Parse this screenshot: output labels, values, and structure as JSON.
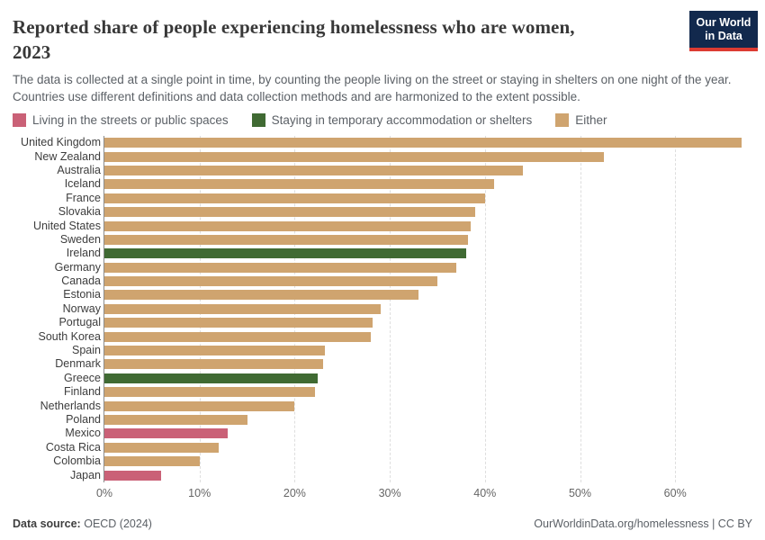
{
  "header": {
    "title_line1": "Reported share of people experiencing homelessness who are women,",
    "title_line2": "2023",
    "subtitle": "The data is collected at a single point in time, by counting the people living on the street or staying in shelters on one night of the year. Countries use different definitions and data collection methods and are harmonized to the extent possible.",
    "logo_line1": "Our World",
    "logo_line2": "in Data"
  },
  "colors": {
    "streets": "#ca6177",
    "shelters": "#406a33",
    "either": "#cfa46f",
    "logo_bg": "#12294d",
    "logo_stripe": "#dc3b32",
    "axis_line": "#8c8c8c",
    "gridline": "#dedede"
  },
  "legend": {
    "items": [
      {
        "key": "streets",
        "label": "Living in the streets or public spaces"
      },
      {
        "key": "shelters",
        "label": "Staying in temporary accommodation or shelters"
      },
      {
        "key": "either",
        "label": "Either"
      }
    ]
  },
  "chart_data": {
    "type": "bar",
    "orientation": "horizontal",
    "title": "Reported share of people experiencing homelessness who are women, 2023",
    "unit": "%",
    "xlim": [
      0,
      69
    ],
    "x_ticks": [
      "0%",
      "10%",
      "20%",
      "30%",
      "40%",
      "50%",
      "60%"
    ],
    "x_tick_values": [
      0,
      10,
      20,
      30,
      40,
      50,
      60
    ],
    "grid": "vertical dashed gridlines at each 10%",
    "legend_position": "top",
    "bars": [
      {
        "country": "United Kingdom",
        "value": 67,
        "series": "either"
      },
      {
        "country": "New Zealand",
        "value": 52.5,
        "series": "either"
      },
      {
        "country": "Australia",
        "value": 44,
        "series": "either"
      },
      {
        "country": "Iceland",
        "value": 41,
        "series": "either"
      },
      {
        "country": "France",
        "value": 40,
        "series": "either"
      },
      {
        "country": "Slovakia",
        "value": 39,
        "series": "either"
      },
      {
        "country": "United States",
        "value": 38.5,
        "series": "either"
      },
      {
        "country": "Sweden",
        "value": 38.2,
        "series": "either"
      },
      {
        "country": "Ireland",
        "value": 38,
        "series": "shelters"
      },
      {
        "country": "Germany",
        "value": 37,
        "series": "either"
      },
      {
        "country": "Canada",
        "value": 35,
        "series": "either"
      },
      {
        "country": "Estonia",
        "value": 33,
        "series": "either"
      },
      {
        "country": "Norway",
        "value": 29,
        "series": "either"
      },
      {
        "country": "Portugal",
        "value": 28.2,
        "series": "either"
      },
      {
        "country": "South Korea",
        "value": 28,
        "series": "either"
      },
      {
        "country": "Spain",
        "value": 23.2,
        "series": "either"
      },
      {
        "country": "Denmark",
        "value": 23,
        "series": "either"
      },
      {
        "country": "Greece",
        "value": 22.4,
        "series": "shelters"
      },
      {
        "country": "Finland",
        "value": 22.1,
        "series": "either"
      },
      {
        "country": "Netherlands",
        "value": 20,
        "series": "either"
      },
      {
        "country": "Poland",
        "value": 15,
        "series": "either"
      },
      {
        "country": "Mexico",
        "value": 13,
        "series": "streets"
      },
      {
        "country": "Costa Rica",
        "value": 12,
        "series": "either"
      },
      {
        "country": "Colombia",
        "value": 10,
        "series": "either"
      },
      {
        "country": "Japan",
        "value": 6,
        "series": "streets"
      }
    ]
  },
  "footer": {
    "source_label": "Data source:",
    "source_value": "OECD (2024)",
    "credit": "OurWorldinData.org/homelessness | CC BY"
  }
}
